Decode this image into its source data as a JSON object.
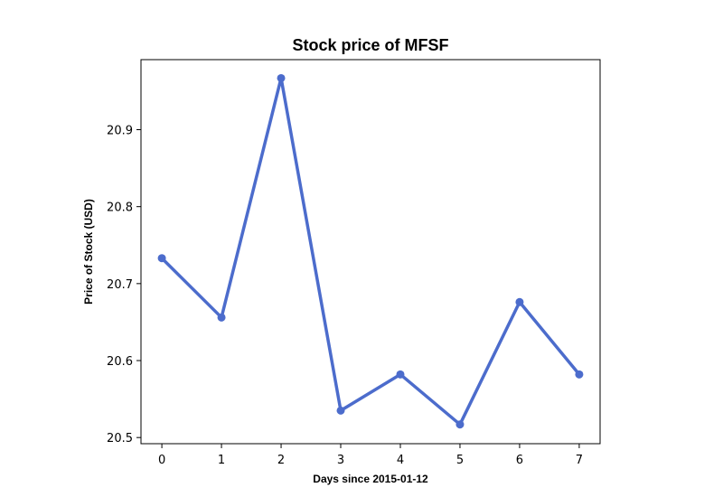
{
  "chart_data": {
    "type": "line",
    "title": "Stock price of MFSF",
    "xlabel": "Days since 2015-01-12",
    "ylabel": "Price of Stock (USD)",
    "x": [
      0,
      1,
      2,
      3,
      4,
      5,
      6,
      7
    ],
    "series": [
      {
        "values": [
          20.733,
          20.656,
          20.967,
          20.535,
          20.582,
          20.517,
          20.676,
          20.582
        ],
        "color": "#4c6ccc"
      }
    ],
    "xlim": [
      -0.35,
      7.35
    ],
    "ylim": [
      20.492,
      20.991
    ],
    "xticks": [
      "0",
      "1",
      "2",
      "3",
      "4",
      "5",
      "6",
      "7"
    ],
    "yticks": [
      "20.5",
      "20.6",
      "20.7",
      "20.8",
      "20.9"
    ],
    "grid": false,
    "legend": "none"
  }
}
